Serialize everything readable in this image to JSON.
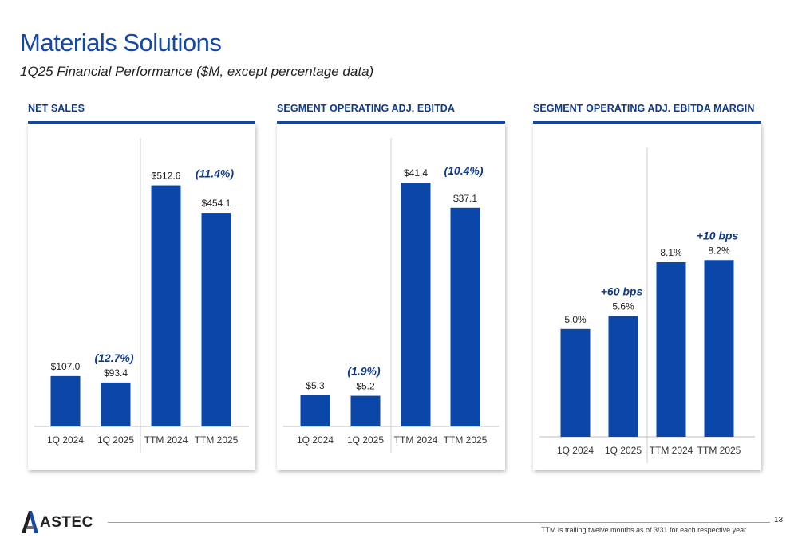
{
  "page": {
    "title": "Materials Solutions",
    "subtitle": "1Q25 Financial Performance ($M, except percentage data)",
    "page_number": "13",
    "footnote": "TTM is trailing twelve months as of 3/31 for each respective year",
    "logo_text": "ASTEC",
    "colors": {
      "bar": "#0b47a8",
      "heading": "#1447a6",
      "annotation": "#0d3a8c"
    }
  },
  "chart_data": [
    {
      "type": "bar",
      "title": "NET SALES",
      "categories": [
        "1Q 2024",
        "1Q 2025",
        "TTM 2024",
        "TTM 2025"
      ],
      "values": [
        107.0,
        93.4,
        512.6,
        454.1
      ],
      "value_labels": [
        "$107.0",
        "$93.4",
        "$512.6",
        "$454.1"
      ],
      "annotations": [
        {
          "text": "(12.7%)",
          "between": [
            0,
            1
          ]
        },
        {
          "text": "(11.4%)",
          "between": [
            2,
            3
          ]
        }
      ],
      "ylim": [
        0,
        600
      ]
    },
    {
      "type": "bar",
      "title": "SEGMENT OPERATING ADJ. EBITDA",
      "categories": [
        "1Q 2024",
        "1Q 2025",
        "TTM 2024",
        "TTM 2025"
      ],
      "values": [
        5.3,
        5.2,
        41.4,
        37.1
      ],
      "value_labels": [
        "$5.3",
        "$5.2",
        "$41.4",
        "$37.1"
      ],
      "annotations": [
        {
          "text": "(1.9%)",
          "between": [
            0,
            1
          ]
        },
        {
          "text": "(10.4%)",
          "between": [
            2,
            3
          ]
        }
      ],
      "ylim": [
        0,
        46
      ]
    },
    {
      "type": "bar",
      "title": "SEGMENT OPERATING ADJ. EBITDA MARGIN",
      "categories": [
        "1Q 2024",
        "1Q 2025",
        "TTM 2024",
        "TTM 2025"
      ],
      "values": [
        5.0,
        5.6,
        8.1,
        8.2
      ],
      "value_labels": [
        "5.0%",
        "5.6%",
        "8.1%",
        "8.2%"
      ],
      "annotations": [
        {
          "text": "+60 bps",
          "between": [
            0,
            1
          ]
        },
        {
          "text": "+10 bps",
          "between": [
            2,
            3
          ]
        }
      ],
      "ylim": [
        0,
        12.5
      ]
    }
  ]
}
